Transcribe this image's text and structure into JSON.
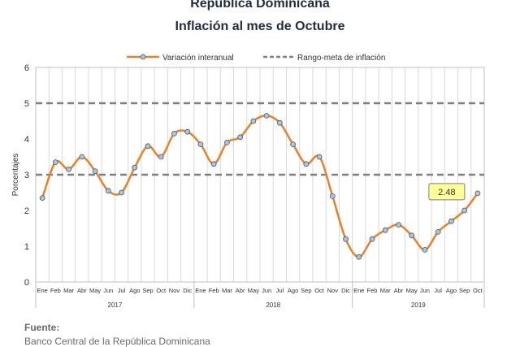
{
  "header": {
    "title": "República Dominicana",
    "subtitle": "Inflación al mes de Octubre"
  },
  "footer": {
    "source_label": "Fuente:",
    "source_text": "Banco Central de la República Dominicana"
  },
  "chart_data": {
    "type": "line",
    "ylabel": "Porcentajes",
    "ylim": [
      0,
      6
    ],
    "yticks": [
      0,
      1,
      2,
      3,
      4,
      5,
      6
    ],
    "grid": "vertical",
    "legend_position": "top",
    "categories": [
      "Ene",
      "Feb",
      "Mar",
      "Abr",
      "May",
      "Jun",
      "Jul",
      "Ago",
      "Sep",
      "Oct",
      "Nov",
      "Dic",
      "Ene",
      "Feb",
      "Mar",
      "Abr",
      "May",
      "Jun",
      "Jul",
      "Ago",
      "Sep",
      "Oct",
      "Nov",
      "Dic",
      "Ene",
      "Feb",
      "Mar",
      "Abr",
      "May",
      "Jun",
      "Jul",
      "Ago",
      "Sep",
      "Oct"
    ],
    "years": [
      {
        "label": "2017",
        "start": 0,
        "end": 11
      },
      {
        "label": "2018",
        "start": 12,
        "end": 23
      },
      {
        "label": "2019",
        "start": 24,
        "end": 33
      }
    ],
    "series": [
      {
        "name": "Variación interanual",
        "color": "#e8822a",
        "marker_color": "#aec3dc",
        "values": [
          2.35,
          3.35,
          3.15,
          3.5,
          3.1,
          2.55,
          2.5,
          3.2,
          3.8,
          3.5,
          4.15,
          4.2,
          3.85,
          3.3,
          3.9,
          4.05,
          4.5,
          4.65,
          4.45,
          3.85,
          3.3,
          3.5,
          2.4,
          1.2,
          0.7,
          1.2,
          1.45,
          1.6,
          1.3,
          0.9,
          1.4,
          1.7,
          2.0,
          2.48
        ]
      },
      {
        "name": "Rango-meta de inflación",
        "color": "#7f7f7f",
        "dashed": true,
        "levels": [
          3,
          5
        ]
      }
    ],
    "annotation": {
      "text": "2.48",
      "index": 33
    }
  }
}
